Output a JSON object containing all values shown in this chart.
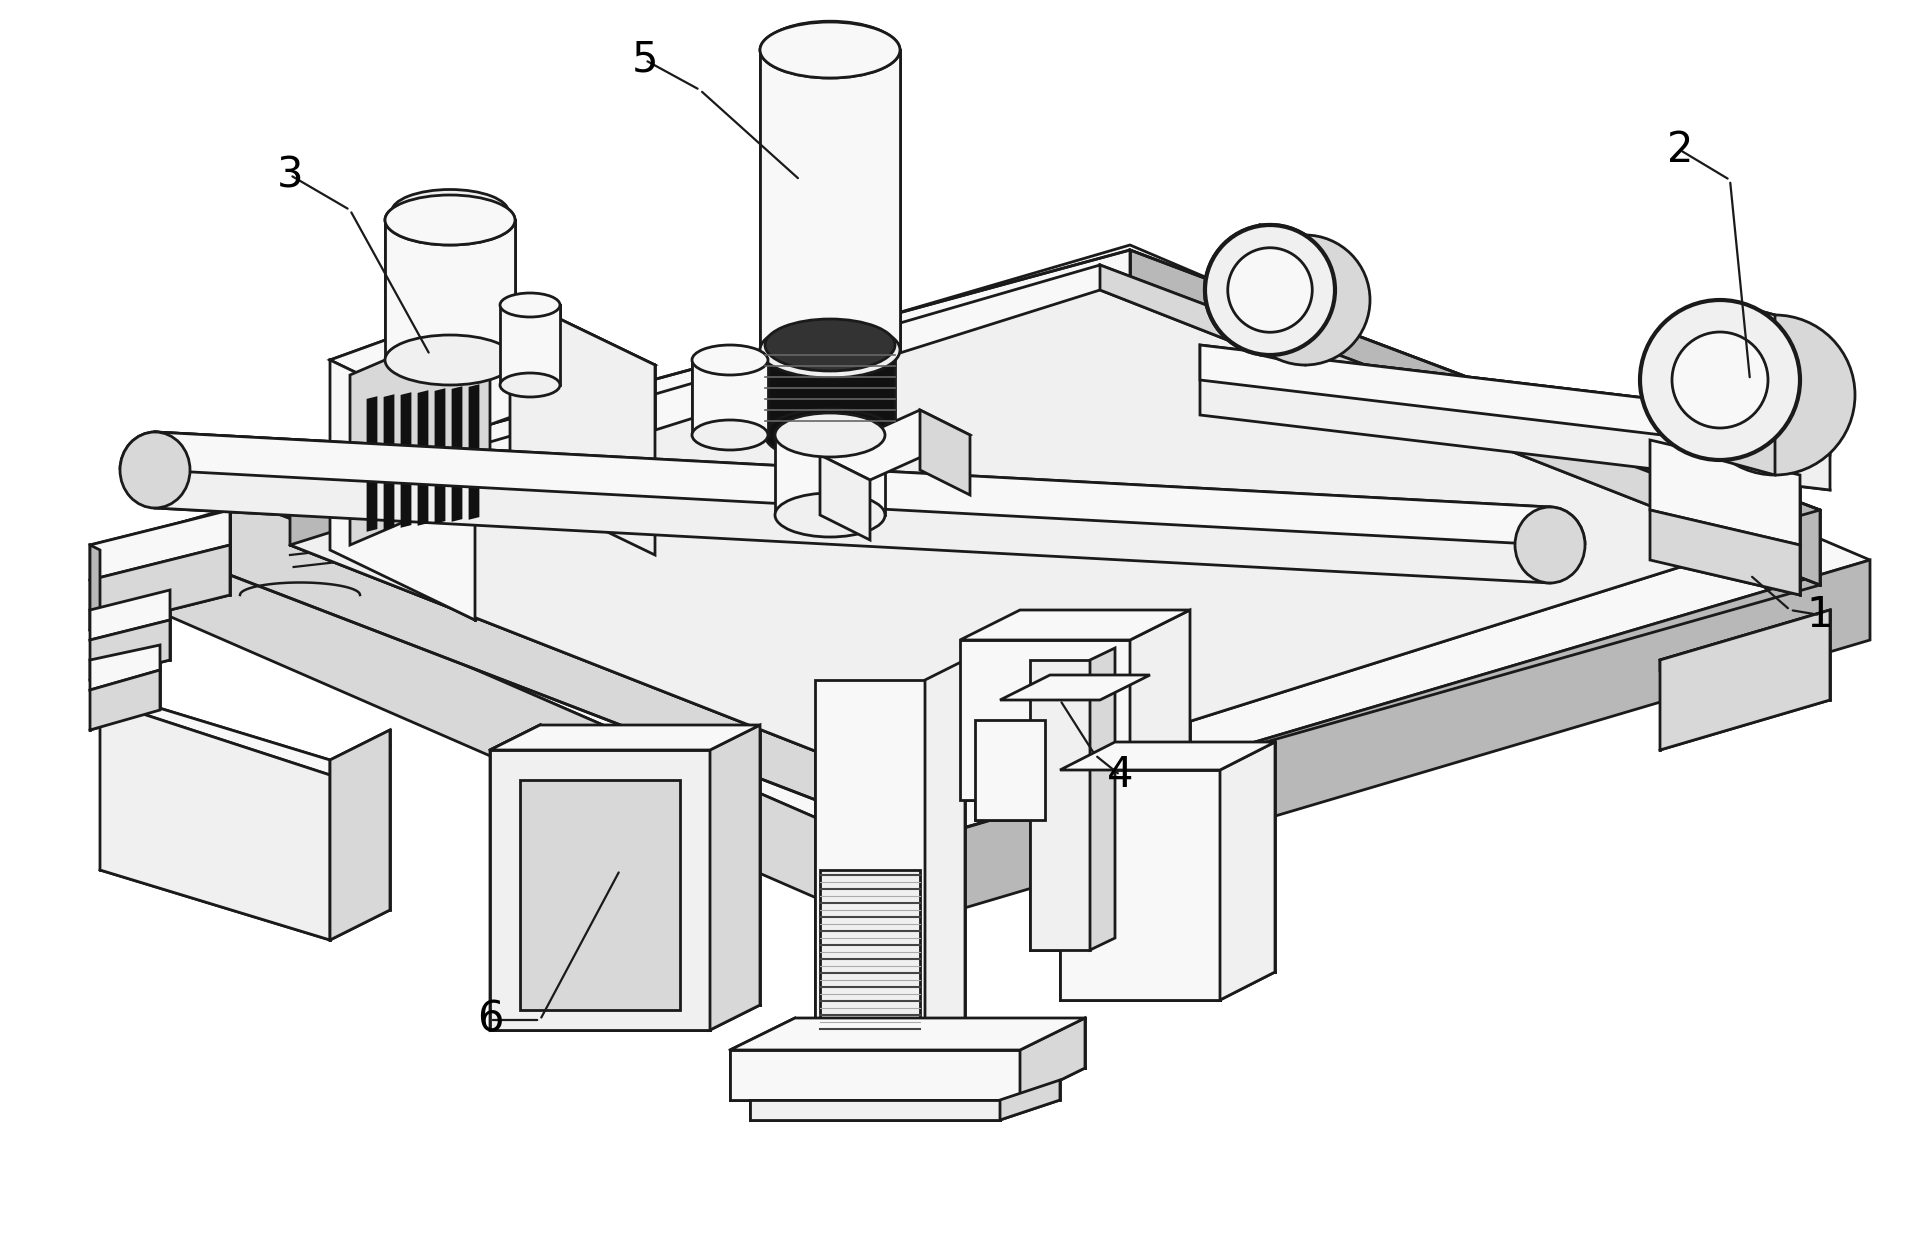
{
  "background_color": "#ffffff",
  "line_color": "#1a1a1a",
  "line_width": 2.0,
  "label_fontsize": 30,
  "figsize": [
    19.32,
    12.45
  ],
  "dpi": 100,
  "colors": {
    "white_face": "#ffffff",
    "light_face": "#f0f0f0",
    "mid_face": "#d8d8d8",
    "dark_face": "#b8b8b8",
    "black": "#111111",
    "very_light": "#f8f8f8"
  }
}
